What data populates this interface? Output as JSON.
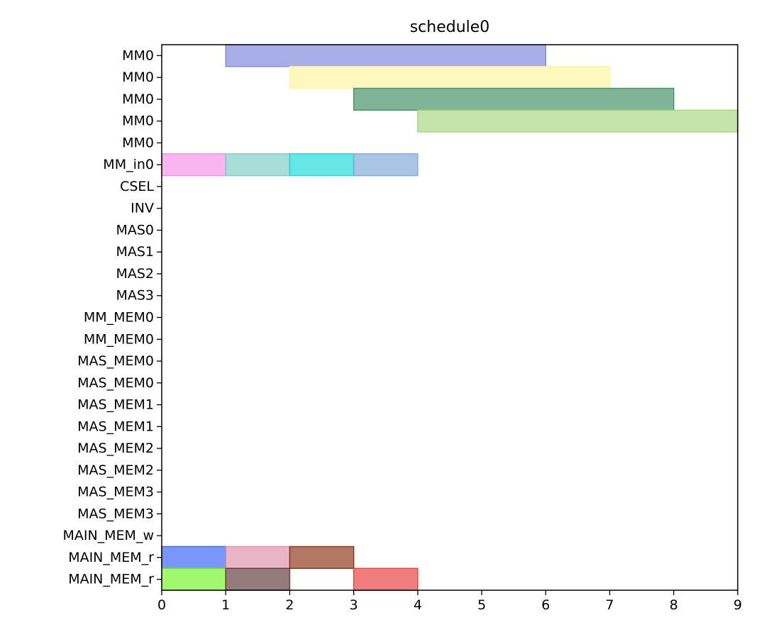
{
  "chart_data": {
    "type": "gantt",
    "title": "schedule0",
    "xlabel": "",
    "ylabel": "",
    "xlim": [
      0,
      9
    ],
    "x_ticks": [
      "0",
      "1",
      "2",
      "3",
      "4",
      "5",
      "6",
      "7",
      "8",
      "9"
    ],
    "grid": false,
    "rows": [
      "MM0",
      "MM0",
      "MM0",
      "MM0",
      "MM0",
      "MM_in0",
      "CSEL",
      "INV",
      "MAS0",
      "MAS1",
      "MAS2",
      "MAS3",
      "MM_MEM0",
      "MM_MEM0",
      "MAS_MEM0",
      "MAS_MEM0",
      "MAS_MEM1",
      "MAS_MEM1",
      "MAS_MEM2",
      "MAS_MEM2",
      "MAS_MEM3",
      "MAS_MEM3",
      "MAIN_MEM_w",
      "MAIN_MEM_r",
      "MAIN_MEM_r"
    ],
    "tasks": [
      {
        "row": 0,
        "start": 1,
        "end": 6,
        "color": "#7a84db"
      },
      {
        "row": 1,
        "start": 2,
        "end": 7,
        "color": "#fff59a"
      },
      {
        "row": 2,
        "start": 3,
        "end": 8,
        "color": "#3c8c62"
      },
      {
        "row": 3,
        "start": 4,
        "end": 9,
        "color": "#a3d57d"
      },
      {
        "row": 5,
        "start": 0,
        "end": 1,
        "color": "#f58ee6"
      },
      {
        "row": 5,
        "start": 1,
        "end": 2,
        "color": "#79cbc6"
      },
      {
        "row": 5,
        "start": 2,
        "end": 3,
        "color": "#14d9d9"
      },
      {
        "row": 5,
        "start": 3,
        "end": 4,
        "color": "#79a6d9"
      },
      {
        "row": 23,
        "start": 0,
        "end": 1,
        "color": "#2f5ff5"
      },
      {
        "row": 23,
        "start": 1,
        "end": 2,
        "color": "#dc8ca8"
      },
      {
        "row": 23,
        "start": 2,
        "end": 3,
        "color": "#8a2e10"
      },
      {
        "row": 24,
        "start": 0,
        "end": 1,
        "color": "#6ef51e"
      },
      {
        "row": 24,
        "start": 1,
        "end": 2,
        "color": "#5e3438"
      },
      {
        "row": 24,
        "start": 3,
        "end": 4,
        "color": "#ea3737"
      }
    ]
  }
}
